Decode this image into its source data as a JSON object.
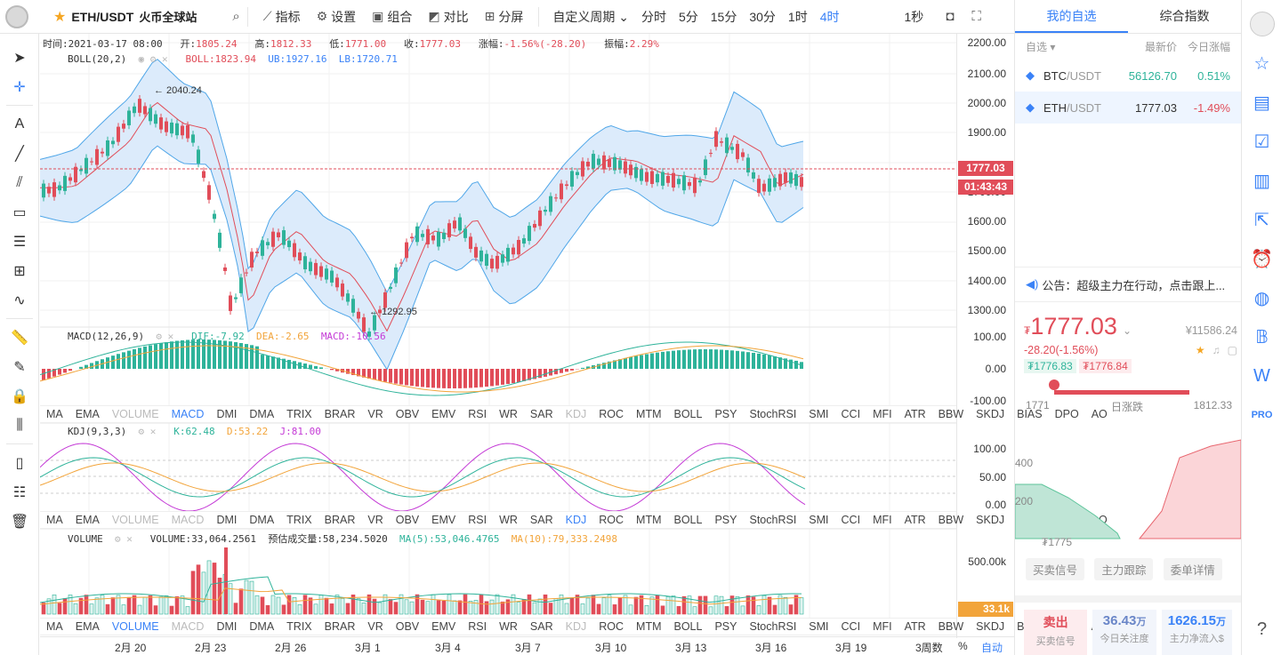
{
  "toolbar": {
    "symbol": "ETH/USDT",
    "exchange": "火币全球站",
    "items": [
      "指标",
      "设置",
      "组合",
      "对比",
      "分屏"
    ],
    "custom_period": "自定义周期",
    "periods": [
      "分时",
      "5分",
      "15分",
      "30分",
      "1时",
      "4时"
    ],
    "active_period": "4时",
    "refresh": "1秒"
  },
  "info": {
    "time_label": "时间:",
    "time": "2021-03-17 08:00",
    "open_label": "开:",
    "open": "1805.24",
    "high_label": "高:",
    "high": "1812.33",
    "low_label": "低:",
    "low": "1771.00",
    "close_label": "收:",
    "close": "1777.03",
    "change_label": "涨幅:",
    "change": "-1.56%(-28.20)",
    "amp_label": "振幅:",
    "amp": "2.29%"
  },
  "boll": {
    "name": "BOLL(20,2)",
    "boll": "BOLL:1823.94",
    "ub": "UB:1927.16",
    "lb": "LB:1720.71",
    "high_mark": "2040.24",
    "low_mark": "1292.95"
  },
  "macd": {
    "name": "MACD(12,26,9)",
    "dif": "DIF:-7.92",
    "dea": "DEA:-2.65",
    "macd": "MACD:-10.56"
  },
  "kdj": {
    "name": "KDJ(9,3,3)",
    "k": "K:62.48",
    "d": "D:53.22",
    "j": "J:81.00"
  },
  "volume": {
    "name": "VOLUME",
    "vol": "VOLUME:33,064.2561",
    "est": "预估成交量:58,234.5020",
    "ma5": "MA(5):53,046.4765",
    "ma10": "MA(10):79,333.2498"
  },
  "indicator_tabs": [
    "MA",
    "EMA",
    "VOLUME",
    "MACD",
    "DMI",
    "DMA",
    "TRIX",
    "BRAR",
    "VR",
    "OBV",
    "EMV",
    "RSI",
    "WR",
    "SAR",
    "KDJ",
    "ROC",
    "MTM",
    "BOLL",
    "PSY",
    "StochRSI",
    "SMI",
    "CCI",
    "MFI",
    "ATR",
    "BBW",
    "SKDJ",
    "BIAS",
    "DPO",
    "AO"
  ],
  "price_axis": [
    "2200.00",
    "2100.00",
    "2000.00",
    "1900.00",
    "1700.00",
    "1600.00",
    "1500.00",
    "1400.00",
    "1300.00"
  ],
  "macd_axis": [
    "100.00",
    "0.00",
    "-100.00"
  ],
  "kdj_axis": [
    "100.00",
    "50.00",
    "0.00"
  ],
  "vol_axis": [
    "500.00k"
  ],
  "current_price_tag": "1777.03",
  "countdown_tag": "01:43:43",
  "vol_tag": "33.1k",
  "x_labels": [
    "2月 20",
    "2月 23",
    "2月 26",
    "3月 1",
    "3月 4",
    "3月 7",
    "3月 10",
    "3月 13",
    "3月 16",
    "3月 19",
    "3周数"
  ],
  "x_right": {
    "pct": "%",
    "auto": "自动"
  },
  "right": {
    "tabs": [
      "我的自选",
      "综合指数"
    ],
    "watch_head": {
      "label": "自选",
      "price": "最新价",
      "change": "今日涨幅"
    },
    "watch": [
      {
        "sym": "BTC",
        "quote": "/USDT",
        "price": "56126.70",
        "change": "0.51%"
      },
      {
        "sym": "ETH",
        "quote": "/USDT",
        "price": "1777.03",
        "change": "-1.49%"
      }
    ],
    "notice": "公告：超级主力在行动，点击跟上...",
    "price_big": "1777.03",
    "price_usd": "¥11586.24",
    "price_change": "-28.20(-1.56%)",
    "bid": "₮1776.83",
    "ask": "₮1776.84",
    "range_low": "1771",
    "range_label": "日涨跌",
    "range_high": "1812.33",
    "depth_left_top": "400",
    "depth_left_mid": "200",
    "depth_bottom": "₮1775",
    "action_tabs": [
      "买卖信号",
      "主力跟踪",
      "委单详情"
    ],
    "signal_title": "卖出",
    "signal_sub": "买卖信号",
    "attention_value": "36.43",
    "attention_unit": "万",
    "attention_label": "今日关注度",
    "inflow_value": "1626.15",
    "inflow_unit": "万",
    "inflow_label": "主力净流入$"
  }
}
